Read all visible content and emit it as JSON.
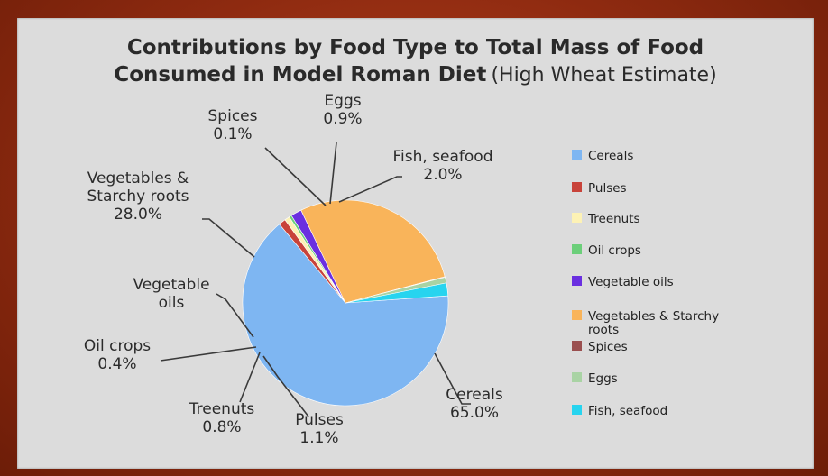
{
  "chart_data": {
    "type": "pie",
    "title": "Contributions by Food Type to Total Mass of Food",
    "title_line2": "Consumed in Model Roman Diet",
    "subtitle": "(High Wheat Estimate)",
    "unit": "%",
    "slices": [
      {
        "name": "Cereals",
        "value": 65.0,
        "label_lines": [
          "Cereals",
          "65.0%"
        ],
        "legend": [
          "Cereals"
        ],
        "color": "#7eb6f2"
      },
      {
        "name": "Pulses",
        "value": 1.1,
        "label_lines": [
          "Pulses",
          "1.1%"
        ],
        "legend": [
          "Pulses"
        ],
        "color": "#c8433a"
      },
      {
        "name": "Treenuts",
        "value": 0.8,
        "label_lines": [
          "Treenuts",
          "0.8%"
        ],
        "legend": [
          "Treenuts"
        ],
        "color": "#fdf2b5"
      },
      {
        "name": "Oil crops",
        "value": 0.4,
        "label_lines": [
          "Oil crops",
          "0.4%"
        ],
        "legend": [
          "Oil crops"
        ],
        "color": "#6ccf7a"
      },
      {
        "name": "Vegetable oils",
        "value": 1.7,
        "label_lines": [
          "Vegetable",
          "oils"
        ],
        "legend": [
          "Vegetable oils"
        ],
        "color": "#6a2fe0"
      },
      {
        "name": "Vegetables & Starchy roots",
        "value": 28.0,
        "label_lines": [
          "Vegetables &",
          "Starchy roots",
          "28.0%"
        ],
        "legend": [
          "Vegetables & Starchy",
          "roots"
        ],
        "color": "#f9b45a"
      },
      {
        "name": "Spices",
        "value": 0.1,
        "label_lines": [
          "Spices",
          "0.1%"
        ],
        "legend": [
          "Spices"
        ],
        "color": "#9a4f4f"
      },
      {
        "name": "Eggs",
        "value": 0.9,
        "label_lines": [
          "Eggs",
          "0.9%"
        ],
        "legend": [
          "Eggs"
        ],
        "color": "#a9d3a4"
      },
      {
        "name": "Fish, seafood",
        "value": 2.0,
        "label_lines": [
          "Fish, seafood",
          "2.0%"
        ],
        "legend": [
          "Fish, seafood"
        ],
        "color": "#27d4ef"
      }
    ],
    "legend_position": "right"
  },
  "colors": {
    "frame": "#8e2a10",
    "panel": "#dcdcdc",
    "leader_line": "#3a3a3a"
  }
}
